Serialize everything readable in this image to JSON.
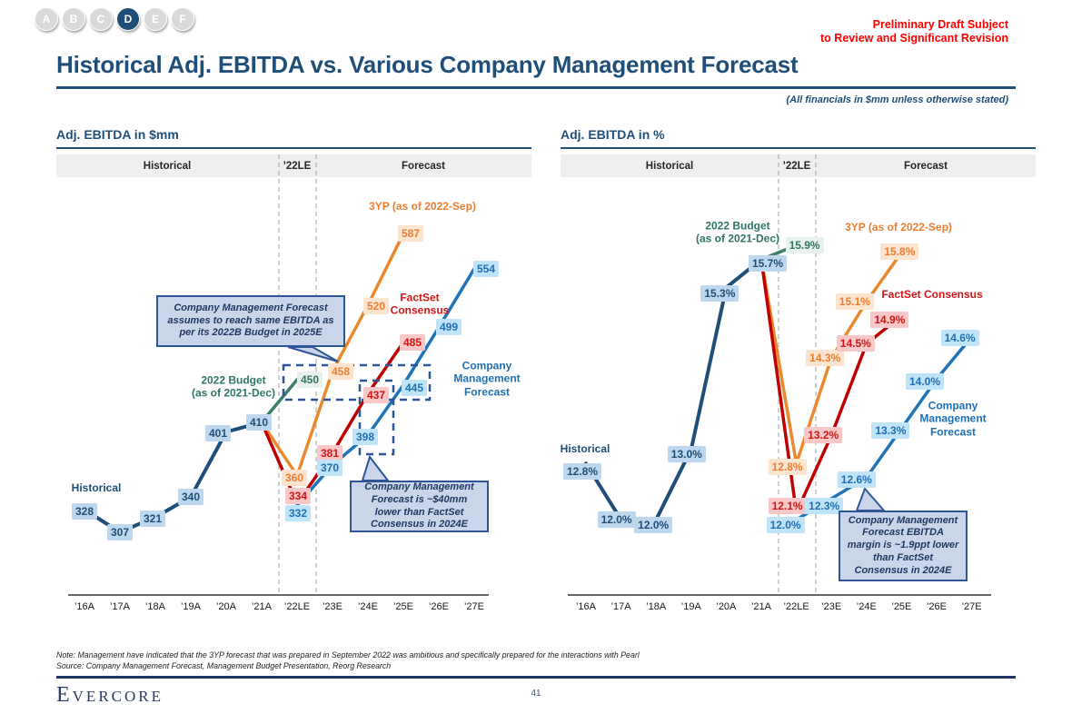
{
  "nav": {
    "items": [
      "A",
      "B",
      "C",
      "D",
      "E",
      "F"
    ],
    "active": "D",
    "active_color": "#1F4E79",
    "inactive_color": "#D9D9D9"
  },
  "header": {
    "disclaimer_line1": "Preliminary Draft Subject",
    "disclaimer_line2": "to Review and Significant Revision",
    "title": "Historical Adj. EBITDA vs. Various Company Management Forecast",
    "financials_note": "(All financials in $mm unless otherwise stated)"
  },
  "footer": {
    "note": "Note: Management have indicated that the 3YP forecast that was prepared in September 2022 was ambitious and specifically prepared for the interactions with Pearl",
    "source": "Source: Company Management Forecast, Management Budget Presentation, Reorg Research",
    "logo": "Evercore",
    "page_number": "41"
  },
  "colors": {
    "navy": "#1F4E79",
    "green_line": "#3E7D6C",
    "orange_line": "#E98A2E",
    "red_line": "#C00000",
    "blue_line": "#1F74B8",
    "callout_bg": "#C9D6EA",
    "callout_border": "#2E5597",
    "band_bg": "#EFEFEF",
    "gridline": "#B0B0B0"
  },
  "chart_data": [
    {
      "id": "ebitda-mm",
      "type": "line",
      "title": "Adj. EBITDA in $mm",
      "band_labels": [
        "Historical",
        "’22LE",
        "Forecast"
      ],
      "categories": [
        "’16A",
        "’17A",
        "’18A",
        "’19A",
        "’20A",
        "’21A",
        "’22LE",
        "’23E",
        "’24E",
        "’25E",
        "’26E",
        "’27E"
      ],
      "ylim": [
        248,
        640
      ],
      "grid": "off",
      "series": [
        {
          "name": "Historical",
          "annotation": "Historical",
          "color": "#1F4E79",
          "label_bg": "#BDD7EE",
          "label_color": "#1F4E79",
          "width": 4,
          "points": [
            {
              "x": 0,
              "v": 328,
              "label": "328",
              "dx": 0,
              "dy": 2
            },
            {
              "x": 1,
              "v": 307,
              "label": "307",
              "dx": 0,
              "dy": 0
            },
            {
              "x": 2,
              "v": 321,
              "label": "321",
              "dx": -3,
              "dy": 2
            },
            {
              "x": 3,
              "v": 340,
              "label": "340",
              "dx": 0,
              "dy": 0
            },
            {
              "x": 4,
              "v": 401,
              "label": "401",
              "dx": -9,
              "dy": 2
            },
            {
              "x": 5,
              "v": 410,
              "label": "410",
              "dx": -3,
              "dy": 0
            }
          ]
        },
        {
          "name": "2022 Budget (as of 2021-Dec)",
          "annotation": "2022 Budget\n(as of 2021-Dec)",
          "color": "#3E7D6C",
          "label_bg": "#E9F1EC",
          "label_color": "#2F7568",
          "width": 3.5,
          "points": [
            {
              "x": 5,
              "v": 410,
              "label": ""
            },
            {
              "x": 6,
              "v": 450,
              "label": "450",
              "dx": 14,
              "dy": 0
            }
          ]
        },
        {
          "name": "3YP (as of 2022-Sep)",
          "annotation": "3YP (as of 2022-Sep)",
          "color": "#E98A2E",
          "label_bg": "#FCE4CF",
          "label_color": "#ED7D31",
          "width": 3.5,
          "points": [
            {
              "x": 5,
              "v": 410,
              "label": ""
            },
            {
              "x": 6,
              "v": 360,
              "label": "360",
              "dx": -3,
              "dy": 2
            },
            {
              "x": 7,
              "v": 458,
              "label": "458",
              "dx": 9,
              "dy": 0
            },
            {
              "x": 8,
              "v": 520,
              "label": "520",
              "dx": 9,
              "dy": 1
            },
            {
              "x": 9,
              "v": 587,
              "label": "587",
              "dx": 8,
              "dy": 0
            }
          ]
        },
        {
          "name": "FactSet Consensus",
          "annotation": "FactSet\nConsensus",
          "color": "#C00000",
          "label_bg": "#F9C7C7",
          "label_color": "#D01616",
          "width": 3.5,
          "points": [
            {
              "x": 5,
              "v": 410,
              "label": ""
            },
            {
              "x": 6,
              "v": 334,
              "label": "334",
              "dx": 1,
              "dy": -8
            },
            {
              "x": 7,
              "v": 381,
              "label": "381",
              "dx": -3,
              "dy": 0
            },
            {
              "x": 8,
              "v": 437,
              "label": "437",
              "dx": 9,
              "dy": 2
            },
            {
              "x": 9,
              "v": 485,
              "label": "485",
              "dx": 10,
              "dy": 0
            }
          ]
        },
        {
          "name": "Company Management Forecast",
          "annotation": "Company\nManagement\nForecast",
          "color": "#1F74B8",
          "label_bg": "#BFE3F7",
          "label_color": "#1F6FB5",
          "width": 3.5,
          "points": [
            {
              "x": 6,
              "v": 332,
              "label": "332",
              "dx": 1,
              "dy": 9
            },
            {
              "x": 7,
              "v": 370,
              "label": "370",
              "dx": -3,
              "dy": 3
            },
            {
              "x": 8,
              "v": 398,
              "label": "398",
              "dx": -3,
              "dy": 2
            },
            {
              "x": 9,
              "v": 445,
              "label": "445",
              "dx": 12,
              "dy": 3
            },
            {
              "x": 10,
              "v": 499,
              "label": "499",
              "dx": 11,
              "dy": 0
            },
            {
              "x": 11,
              "v": 554,
              "label": "554",
              "dx": 13,
              "dy": 0
            }
          ]
        }
      ],
      "callouts": [
        {
          "text": "Company Management Forecast assumes to reach same EBITDA as per its 2022B Budget in 2025E"
        },
        {
          "text": "Company Management Forecast is ~$40mm lower than FactSet Consensus in 2024E"
        }
      ]
    },
    {
      "id": "ebitda-pct",
      "type": "line",
      "title": "Adj. EBITDA in %",
      "band_labels": [
        "Historical",
        "’22LE",
        "Forecast"
      ],
      "categories": [
        "’16A",
        "’17A",
        "’18A",
        "’19A",
        "’20A",
        "’21A",
        "’22LE",
        "’23E",
        "’24E",
        "’25E",
        "’26E",
        "’27E"
      ],
      "ylim": [
        10.93,
        16.87
      ],
      "grid": "off",
      "series": [
        {
          "name": "Historical",
          "annotation": "Historical",
          "color": "#1F4E79",
          "label_bg": "#BDD7EE",
          "label_color": "#1F4E79",
          "width": 4,
          "points": [
            {
              "x": 0,
              "v": 12.8,
              "label": "12.8%",
              "dx": -4,
              "dy": 9
            },
            {
              "x": 1,
              "v": 12.0,
              "label": "12.0%",
              "dx": -5,
              "dy": 0
            },
            {
              "x": 2,
              "v": 12.0,
              "label": "12.0%",
              "dx": -3,
              "dy": 6
            },
            {
              "x": 3,
              "v": 13.0,
              "label": "13.0%",
              "dx": -5,
              "dy": 5
            },
            {
              "x": 4,
              "v": 15.3,
              "label": "15.3%",
              "dx": -7,
              "dy": 6
            },
            {
              "x": 5,
              "v": 15.7,
              "label": "15.7%",
              "dx": 7,
              "dy": 4
            }
          ]
        },
        {
          "name": "2022 Budget (as of 2021-Dec)",
          "annotation": "2022 Budget\n(as of 2021-Dec)",
          "color": "#3E7D6C",
          "label_bg": "#E9F1EC",
          "label_color": "#2F7568",
          "width": 3.5,
          "points": [
            {
              "x": 5,
              "v": 15.7,
              "label": ""
            },
            {
              "x": 6,
              "v": 15.9,
              "label": "15.9%",
              "dx": 9,
              "dy": 0
            }
          ]
        },
        {
          "name": "3YP (as of 2022-Sep)",
          "annotation": "3YP (as of 2022-Sep)",
          "color": "#E98A2E",
          "label_bg": "#FCE4CF",
          "label_color": "#ED7D31",
          "width": 3.5,
          "points": [
            {
              "x": 5,
              "v": 15.7,
              "label": ""
            },
            {
              "x": 6,
              "v": 12.8,
              "label": "12.8%",
              "dx": -10,
              "dy": 4
            },
            {
              "x": 7,
              "v": 14.3,
              "label": "14.3%",
              "dx": -7,
              "dy": 0
            },
            {
              "x": 8,
              "v": 15.1,
              "label": "15.1%",
              "dx": -13,
              "dy": 0
            },
            {
              "x": 9,
              "v": 15.8,
              "label": "15.8%",
              "dx": -2,
              "dy": -1
            }
          ]
        },
        {
          "name": "FactSet Consensus",
          "annotation": "FactSet Consensus",
          "color": "#C00000",
          "label_bg": "#F9C7C7",
          "label_color": "#D01616",
          "width": 3.5,
          "points": [
            {
              "x": 5,
              "v": 15.7,
              "label": ""
            },
            {
              "x": 6,
              "v": 12.1,
              "label": "12.1%",
              "dx": -10,
              "dy": -7
            },
            {
              "x": 7,
              "v": 13.2,
              "label": "13.2%",
              "dx": -9,
              "dy": 0
            },
            {
              "x": 8,
              "v": 14.5,
              "label": "14.5%",
              "dx": -12,
              "dy": -1
            },
            {
              "x": 9,
              "v": 14.9,
              "label": "14.9%",
              "dx": -13,
              "dy": 4
            }
          ]
        },
        {
          "name": "Company Management Forecast",
          "annotation": "Company\nManagement\nForecast",
          "color": "#1F74B8",
          "label_bg": "#BFE3F7",
          "label_color": "#1F6FB5",
          "width": 3.5,
          "points": [
            {
              "x": 6,
              "v": 12.0,
              "label": "12.0%",
              "dx": -12,
              "dy": 6
            },
            {
              "x": 7,
              "v": 12.3,
              "label": "12.3%",
              "dx": -8,
              "dy": 8
            },
            {
              "x": 8,
              "v": 12.6,
              "label": "12.6%",
              "dx": -11,
              "dy": 2
            },
            {
              "x": 9,
              "v": 13.3,
              "label": "13.3%",
              "dx": -12,
              "dy": 3
            },
            {
              "x": 10,
              "v": 14.0,
              "label": "14.0%",
              "dx": -13,
              "dy": 3
            },
            {
              "x": 11,
              "v": 14.6,
              "label": "14.6%",
              "dx": -13,
              "dy": 1
            }
          ]
        }
      ],
      "callouts": [
        {
          "text": "Company Management Forecast EBITDA margin is ~1.9ppt lower than FactSet Consensus in 2024E"
        }
      ]
    }
  ]
}
